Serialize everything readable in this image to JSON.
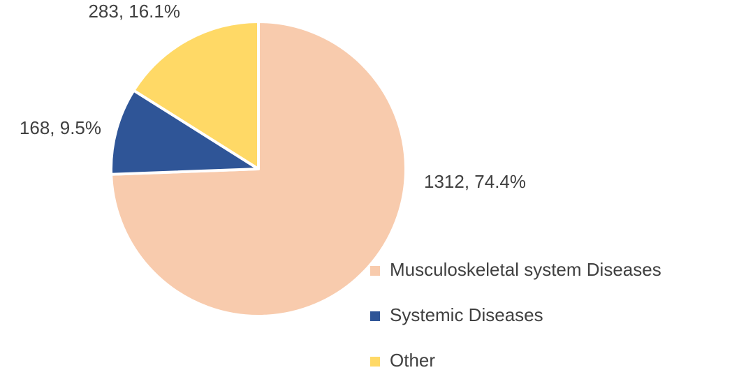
{
  "chart_data": {
    "type": "pie",
    "categories": [
      "Musculoskeletal system Diseases",
      "Systemic Diseases",
      "Other"
    ],
    "values": [
      1312,
      168,
      283
    ],
    "value_labels": [
      "1312, 74.4%",
      "168, 9.5%",
      "283, 16.1%"
    ],
    "colors": [
      "#f8cbad",
      "#2f5597",
      "#ffd966"
    ],
    "legend": "bottom-right"
  }
}
